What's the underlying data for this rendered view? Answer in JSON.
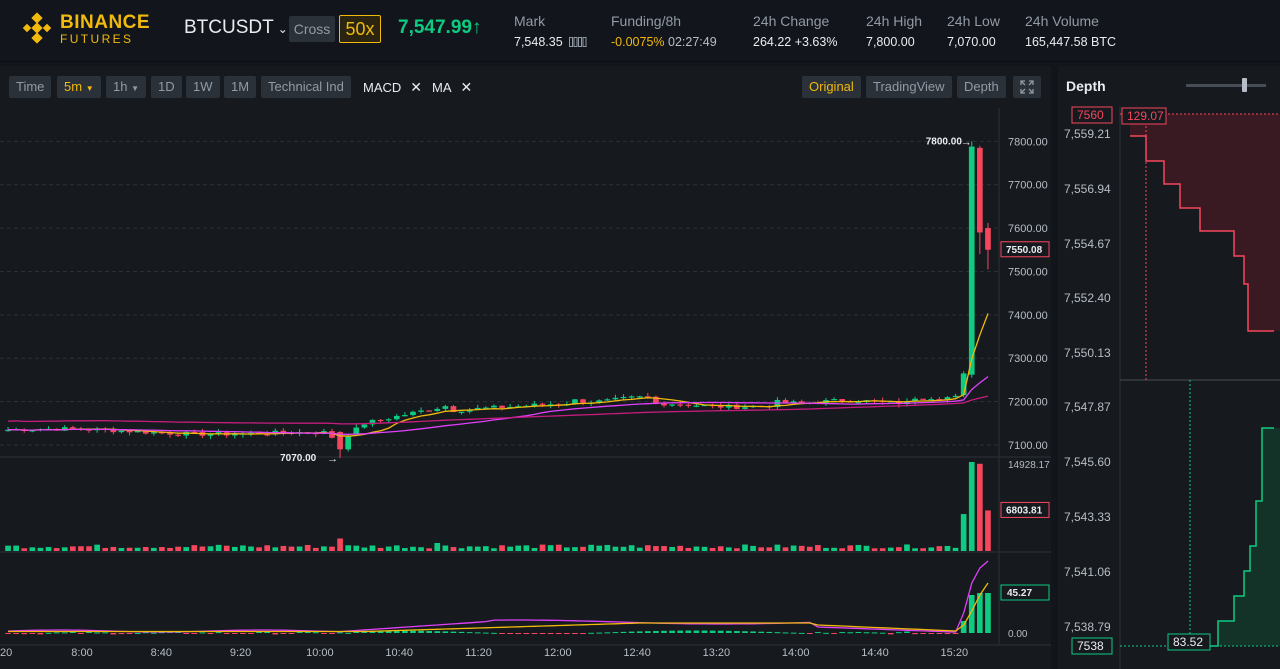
{
  "colors": {
    "up": "#0ecb81",
    "down": "#f6465d",
    "accent": "#f0b90b",
    "ma_slow": "#c41d7f",
    "ma_mid": "#e040fb",
    "ma_fast": "#f0b90b",
    "bg": "#161a1e",
    "grid": "#2b3139"
  },
  "header": {
    "logo_text": "BINANCE",
    "logo_sub": "FUTURES",
    "symbol": "BTCUSDT",
    "margin_mode": "Cross",
    "leverage": "50x",
    "last_price": "7,547.99",
    "last_price_arrow": "↑",
    "mark": {
      "label": "Mark",
      "value": "7,548.35"
    },
    "funding": {
      "label": "Funding/8h",
      "rate": "-0.0075%",
      "countdown": "02:27:49"
    },
    "change": {
      "label": "24h Change",
      "value": "264.22 +3.63%"
    },
    "high": {
      "label": "24h High",
      "value": "7,800.00"
    },
    "low": {
      "label": "24h Low",
      "value": "7,070.00"
    },
    "volume": {
      "label": "24h Volume",
      "value": "165,447.58 BTC"
    }
  },
  "toolbar": {
    "time": "Time",
    "interval": "5m",
    "interval_2": "1h",
    "interval_3": "1D",
    "interval_4": "1W",
    "interval_5": "1M",
    "technical": "Technical Ind",
    "ind_macd": "MACD",
    "ind_ma": "MA",
    "view_original": "Original",
    "view_tradingview": "TradingView",
    "view_depth": "Depth"
  },
  "chart_data": {
    "type": "candlestick",
    "price_axis": [
      "7800.00",
      "7700.00",
      "7600.00",
      "7500.00",
      "7400.00",
      "7300.00",
      "7200.00",
      "7100.00"
    ],
    "price_range": [
      7070,
      7870
    ],
    "time_axis": [
      "20",
      "8:00",
      "8:40",
      "9:20",
      "10:00",
      "10:40",
      "11:20",
      "12:00",
      "12:40",
      "13:20",
      "14:00",
      "14:40",
      "15:20"
    ],
    "current_price_label": "7550.08",
    "current_price": 7550.08,
    "high_marker": "7800.00",
    "low_marker": "7070.00",
    "volume_max_label": "14928.17",
    "volume_current_label": "6803.81",
    "volume_max": 14928.17,
    "volume_current": 6803.81,
    "macd_current_label": "45.27",
    "macd_zero_label": "0.00"
  },
  "depth": {
    "title": "Depth",
    "ask_price_tag": "7560",
    "ask_amount_tag": "129.07",
    "bid_price_tag": "7538",
    "bid_amount_tag": "83.52",
    "price_axis": [
      "7,559.21",
      "7,556.94",
      "7,554.67",
      "7,552.40",
      "7,550.13",
      "7,547.87",
      "7,545.60",
      "7,543.33",
      "7,541.06",
      "7,538.79"
    ]
  }
}
